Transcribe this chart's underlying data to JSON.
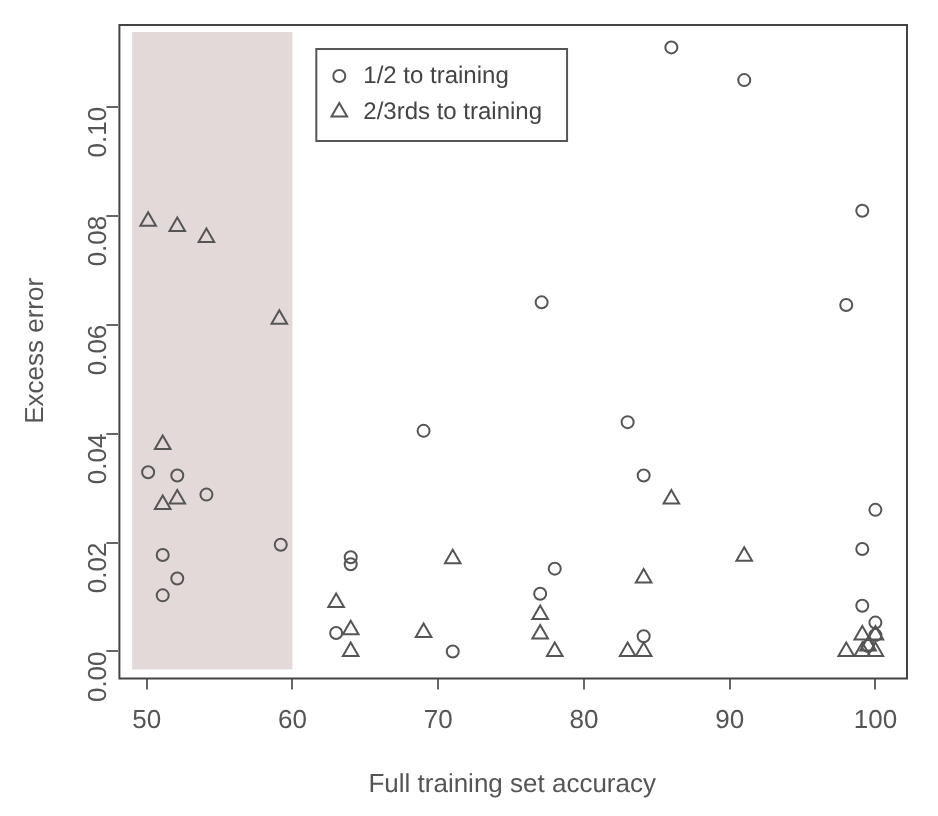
{
  "chart_data": {
    "type": "scatter",
    "xlabel": "Full training set accuracy",
    "ylabel": "Excess error",
    "xlim": [
      48.06,
      102.1
    ],
    "ylim": [
      -0.0048,
      0.1152
    ],
    "xticks": [
      50,
      60,
      70,
      80,
      90,
      100
    ],
    "yticks": [
      {
        "value": 0,
        "label": "0.00"
      },
      {
        "value": 0.02,
        "label": "0.02"
      },
      {
        "value": 0.04,
        "label": "0.04"
      },
      {
        "value": 0.06,
        "label": "0.06"
      },
      {
        "value": 0.08,
        "label": "0.08"
      },
      {
        "value": 0.1,
        "label": "0.10"
      }
    ],
    "grid": false,
    "legend": "top",
    "bands": [
      {
        "axis": "x",
        "from": 49,
        "to": 60,
        "color": "#e3d9d9"
      }
    ],
    "series": [
      {
        "name": "1/2 to training",
        "color": "#555555",
        "marker": "circle",
        "x": [
          50.1,
          52.1,
          54.1,
          51.1,
          52.1,
          51.1,
          59.2,
          64,
          64,
          63,
          69,
          71,
          86,
          91,
          99.1,
          77.1,
          98,
          83,
          84.1,
          100,
          99.1,
          78,
          77,
          99.1,
          84.1,
          100,
          100,
          99.5
        ],
        "values": [
          0.0329,
          0.0323,
          0.0288,
          0.0177,
          0.0134,
          0.0103,
          0.0196,
          0.0173,
          0.016,
          0.0034,
          0.0405,
          0,
          0.1109,
          0.1049,
          0.0809,
          0.0641,
          0.0636,
          0.0421,
          0.0323,
          0.026,
          0.0188,
          0.0152,
          0.0106,
          0.0084,
          0.0028,
          0.0053,
          0.003,
          0.001
        ]
      },
      {
        "name": "2/3rds to training",
        "color": "#555555",
        "marker": "triangle",
        "x": [
          50.1,
          52.1,
          54.1,
          59.1,
          51.1,
          51.1,
          52.1,
          63,
          64,
          64,
          69,
          71,
          86,
          91,
          84.1,
          77,
          77,
          78,
          83,
          84.1,
          98,
          99.1,
          99.1,
          100,
          100,
          99.5
        ],
        "values": [
          0.079,
          0.078,
          0.076,
          0.061,
          0.038,
          0.027,
          0.028,
          0.009,
          0.004,
          0,
          0.0035,
          0.017,
          0.028,
          0.0175,
          0.0135,
          0.0068,
          0.0032,
          0,
          0,
          0,
          0,
          0.003,
          0,
          0.003,
          0,
          0.001
        ]
      }
    ]
  }
}
